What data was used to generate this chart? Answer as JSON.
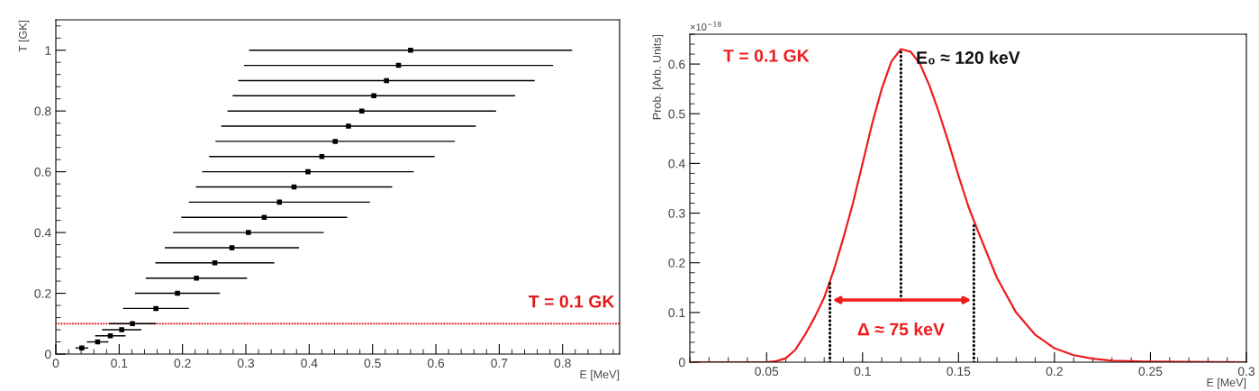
{
  "chart_data": [
    {
      "type": "scatter",
      "xlabel": "E [MeV]",
      "ylabel": "T [GK]",
      "xlim": [
        0,
        0.89
      ],
      "ylim": [
        0,
        1.1
      ],
      "xticks": [
        0,
        0.1,
        0.2,
        0.3,
        0.4,
        0.5,
        0.6,
        0.7,
        0.8
      ],
      "yticks": [
        0,
        0.2,
        0.4,
        0.6,
        0.8,
        1
      ],
      "marker": "square",
      "grid": false,
      "legend": false,
      "series": [
        {
          "color": "#000000",
          "x": [
            0.041,
            0.066,
            0.086,
            0.104,
            0.121,
            0.158,
            0.192,
            0.222,
            0.251,
            0.278,
            0.304,
            0.329,
            0.353,
            0.376,
            0.398,
            0.42,
            0.441,
            0.462,
            0.483,
            0.502,
            0.522,
            0.541,
            0.56
          ],
          "values": [
            0.02,
            0.04,
            0.06,
            0.08,
            0.1,
            0.15,
            0.2,
            0.25,
            0.3,
            0.35,
            0.4,
            0.45,
            0.5,
            0.55,
            0.6,
            0.65,
            0.7,
            0.75,
            0.8,
            0.85,
            0.9,
            0.95,
            1.0
          ],
          "xerrors": [
            0.01,
            0.017,
            0.024,
            0.031,
            0.037,
            0.052,
            0.067,
            0.08,
            0.094,
            0.106,
            0.119,
            0.131,
            0.143,
            0.155,
            0.167,
            0.178,
            0.189,
            0.201,
            0.212,
            0.223,
            0.234,
            0.244,
            0.255
          ]
        }
      ],
      "ref_lines": [
        {
          "axis": "y",
          "value": 0.1,
          "label": "T = 0.1 GK",
          "color": "#e31a1c",
          "line_style": "dotted"
        }
      ]
    },
    {
      "type": "line",
      "xlabel": "E [MeV]",
      "ylabel": "Prob. [Arb. Units]",
      "xlim": [
        0.01,
        0.3
      ],
      "ylim": [
        0,
        0.66
      ],
      "xticks": [
        0.05,
        0.1,
        0.15,
        0.2,
        0.25,
        0.3
      ],
      "yticks": [
        0,
        0.1,
        0.2,
        0.3,
        0.4,
        0.5,
        0.6
      ],
      "marker": "none",
      "grid": false,
      "legend": false,
      "series": [
        {
          "color": "#ee1c1c",
          "line_style": "solid",
          "x": [
            0.01,
            0.05,
            0.055,
            0.06,
            0.065,
            0.07,
            0.075,
            0.08,
            0.085,
            0.09,
            0.095,
            0.1,
            0.105,
            0.11,
            0.115,
            0.12,
            0.125,
            0.13,
            0.135,
            0.14,
            0.145,
            0.15,
            0.155,
            0.16,
            0.17,
            0.18,
            0.19,
            0.2,
            0.21,
            0.22,
            0.23,
            0.25,
            0.3
          ],
          "values": [
            0,
            0,
            0.002,
            0.008,
            0.025,
            0.055,
            0.09,
            0.13,
            0.185,
            0.25,
            0.32,
            0.4,
            0.48,
            0.55,
            0.605,
            0.63,
            0.625,
            0.6,
            0.555,
            0.5,
            0.44,
            0.375,
            0.315,
            0.265,
            0.17,
            0.1,
            0.055,
            0.028,
            0.014,
            0.007,
            0.003,
            0.001,
            0
          ]
        },
        {
          "color": "#000000",
          "line_style": "dotted",
          "x": [
            0.083,
            0.083
          ],
          "values": [
            0,
            0.16
          ]
        },
        {
          "color": "#000000",
          "line_style": "dotted",
          "x": [
            0.12,
            0.12
          ],
          "values": [
            0.125,
            0.63
          ]
        },
        {
          "color": "#000000",
          "line_style": "dotted",
          "x": [
            0.158,
            0.158
          ],
          "values": [
            0,
            0.28
          ]
        }
      ],
      "annotations": [
        "×10$^{−18}$",
        "T = 0.1 GK",
        {
          "text": "E₀ ≈ 120 keV",
          "x": 0.12,
          "y": 0.63
        },
        {
          "text": "Δ ≈ 75 keV",
          "x": 0.12,
          "y": 0.125
        }
      ]
    }
  ]
}
